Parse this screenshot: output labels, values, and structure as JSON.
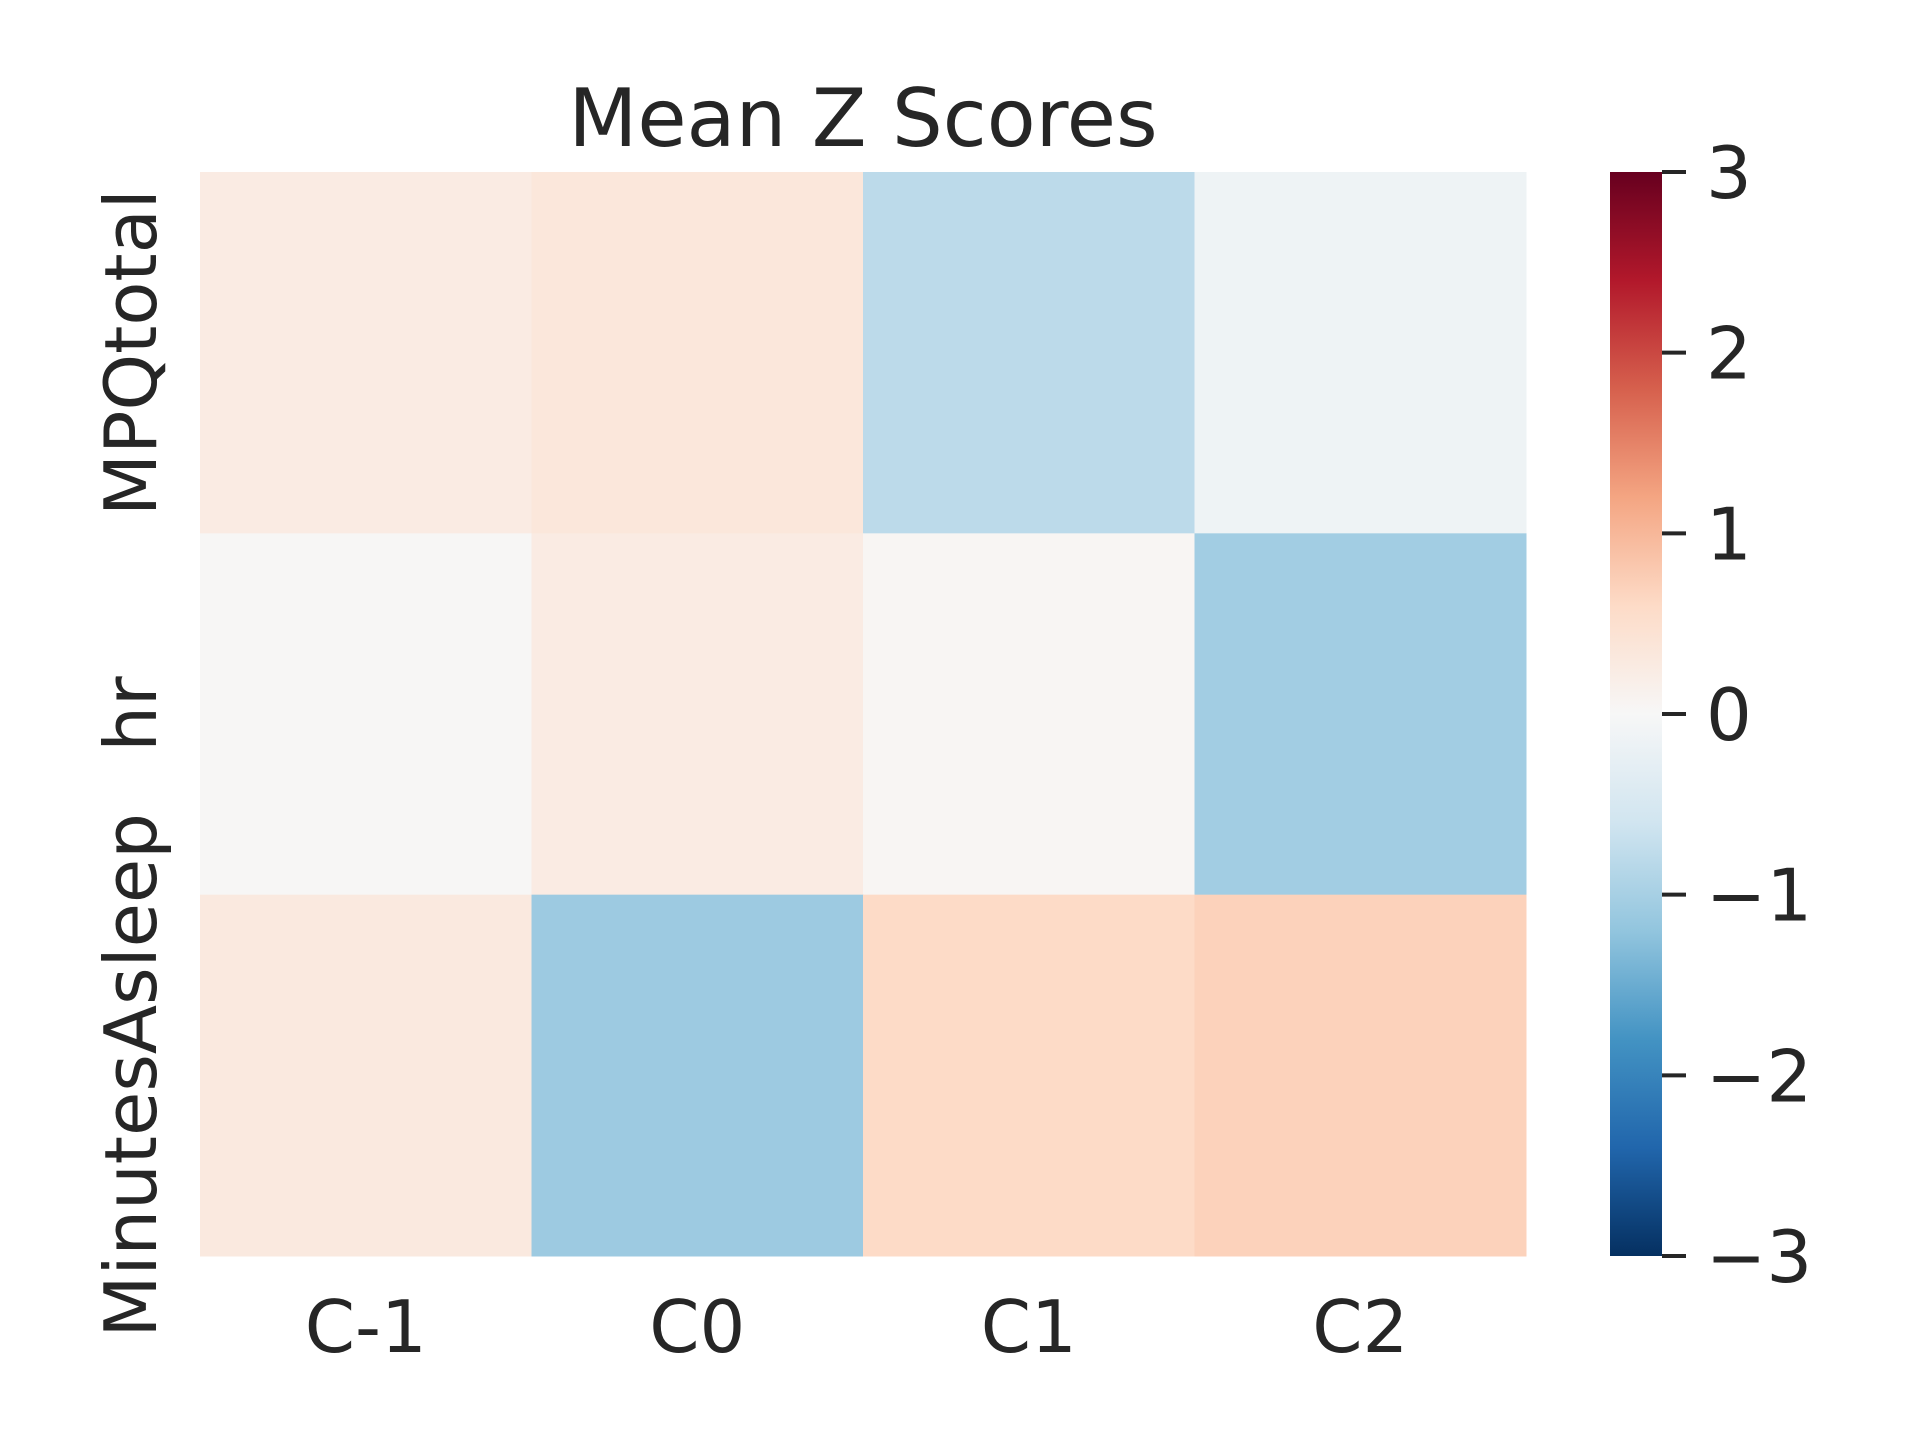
{
  "chart_data": {
    "type": "heatmap",
    "title": "Mean Z Scores",
    "xlabel": "",
    "ylabel": "",
    "x_categories": [
      "C-1",
      "C0",
      "C1",
      "C2"
    ],
    "y_categories": [
      "MPQtotal",
      "hr",
      "MinutesAsleep"
    ],
    "values": [
      [
        0.25,
        0.35,
        -0.8,
        -0.15
      ],
      [
        0.02,
        0.25,
        0.05,
        -1.05
      ],
      [
        0.3,
        -1.1,
        0.6,
        0.7
      ]
    ],
    "colormap": "RdBu_r",
    "vmin": -3,
    "vmax": 3,
    "colorbar": {
      "ticks": [
        3,
        2,
        1,
        0,
        -1,
        -2,
        -3
      ],
      "tick_labels": [
        "3",
        "2",
        "1",
        "0",
        "−1",
        "−2",
        "−3"
      ]
    },
    "grid": false,
    "legend": "colorbar-right"
  }
}
